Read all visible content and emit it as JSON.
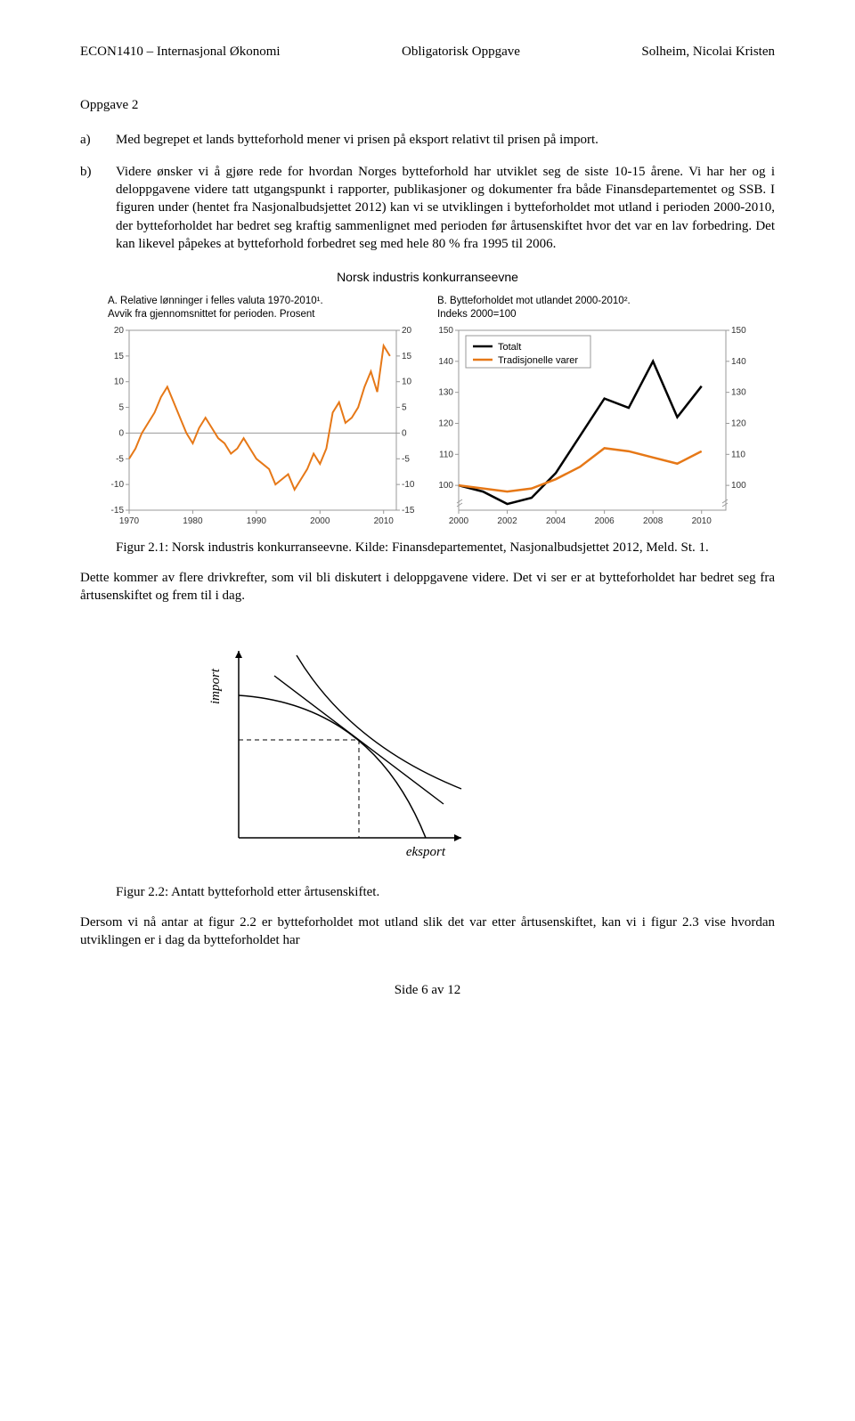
{
  "header": {
    "left": "ECON1410 – Internasjonal Økonomi",
    "center": "Obligatorisk Oppgave",
    "right": "Solheim, Nicolai Kristen"
  },
  "task_title": "Oppgave 2",
  "item_a": {
    "label": "a)",
    "text": "Med begrepet et lands bytteforhold mener vi prisen på eksport relativt til prisen på import."
  },
  "item_b": {
    "label": "b)",
    "text": "Videre ønsker vi å gjøre rede for hvordan Norges bytteforhold har utviklet seg de siste 10-15 årene. Vi har her og i deloppgavene videre tatt utgangspunkt i rapporter, publikasjoner og dokumenter fra både Finansdepartementet og SSB. I figuren under (hentet fra Nasjonalbudsjettet 2012) kan vi se utviklingen i bytteforholdet mot utland i perioden 2000-2010, der bytteforholdet har bedret seg kraftig sammenlignet med perioden før årtusenskiftet hvor det var en lav forbedring. Det kan likevel påpekes at bytteforhold forbedret seg med hele 80 % fra 1995 til 2006."
  },
  "charts": {
    "main_title": "Norsk industris konkurranseevne",
    "left": {
      "subtitle_a": "A.  Relative lønninger i felles valuta 1970-2010¹.",
      "subtitle_b": "Avvik fra gjennomsnittet for perioden. Prosent",
      "type": "line",
      "x_ticks": [
        1970,
        1980,
        1990,
        2000,
        2010
      ],
      "y_ticks": [
        -15,
        -10,
        -5,
        0,
        5,
        10,
        15,
        20
      ],
      "ylim": [
        -15,
        20
      ],
      "xlim": [
        1970,
        2012
      ],
      "series": {
        "color": "#e67817",
        "width": 2,
        "points": [
          [
            1970,
            -5
          ],
          [
            1971,
            -3
          ],
          [
            1972,
            0
          ],
          [
            1973,
            2
          ],
          [
            1974,
            4
          ],
          [
            1975,
            7
          ],
          [
            1976,
            9
          ],
          [
            1977,
            6
          ],
          [
            1978,
            3
          ],
          [
            1979,
            0
          ],
          [
            1980,
            -2
          ],
          [
            1981,
            1
          ],
          [
            1982,
            3
          ],
          [
            1983,
            1
          ],
          [
            1984,
            -1
          ],
          [
            1985,
            -2
          ],
          [
            1986,
            -4
          ],
          [
            1987,
            -3
          ],
          [
            1988,
            -1
          ],
          [
            1989,
            -3
          ],
          [
            1990,
            -5
          ],
          [
            1991,
            -6
          ],
          [
            1992,
            -7
          ],
          [
            1993,
            -10
          ],
          [
            1994,
            -9
          ],
          [
            1995,
            -8
          ],
          [
            1996,
            -11
          ],
          [
            1997,
            -9
          ],
          [
            1998,
            -7
          ],
          [
            1999,
            -4
          ],
          [
            2000,
            -6
          ],
          [
            2001,
            -3
          ],
          [
            2002,
            4
          ],
          [
            2003,
            6
          ],
          [
            2004,
            2
          ],
          [
            2005,
            3
          ],
          [
            2006,
            5
          ],
          [
            2007,
            9
          ],
          [
            2008,
            12
          ],
          [
            2009,
            8
          ],
          [
            2010,
            17
          ],
          [
            2011,
            15
          ]
        ]
      },
      "axis_color": "#999999",
      "tick_font": 10,
      "bg": "#ffffff"
    },
    "right": {
      "subtitle_a": "B.  Bytteforholdet mot utlandet 2000-2010².",
      "subtitle_b": "Indeks 2000=100",
      "type": "line",
      "x_ticks": [
        2000,
        2002,
        2004,
        2006,
        2008,
        2010
      ],
      "y_ticks": [
        100,
        110,
        120,
        130,
        140,
        150
      ],
      "ylim": [
        92,
        150
      ],
      "xlim": [
        2000,
        2011
      ],
      "legend": {
        "items": [
          {
            "label": "Totalt",
            "color": "#000000"
          },
          {
            "label": "Tradisjonelle varer",
            "color": "#e67817"
          }
        ],
        "box_color": "#999999"
      },
      "series_total": {
        "color": "#000000",
        "width": 2.5,
        "points": [
          [
            2000,
            100
          ],
          [
            2001,
            98
          ],
          [
            2002,
            94
          ],
          [
            2003,
            96
          ],
          [
            2004,
            104
          ],
          [
            2005,
            116
          ],
          [
            2006,
            128
          ],
          [
            2007,
            125
          ],
          [
            2008,
            140
          ],
          [
            2009,
            122
          ],
          [
            2010,
            132
          ]
        ]
      },
      "series_trad": {
        "color": "#e67817",
        "width": 2.5,
        "points": [
          [
            2000,
            100
          ],
          [
            2001,
            99
          ],
          [
            2002,
            98
          ],
          [
            2003,
            99
          ],
          [
            2004,
            102
          ],
          [
            2005,
            106
          ],
          [
            2006,
            112
          ],
          [
            2007,
            111
          ],
          [
            2008,
            109
          ],
          [
            2009,
            107
          ],
          [
            2010,
            111
          ]
        ]
      },
      "axis_color": "#999999",
      "tick_font": 10,
      "bg": "#ffffff"
    }
  },
  "caption_21": "Figur 2.1: Norsk industris konkurranseevne. Kilde: Finansdepartementet, Nasjonalbudsjettet 2012, Meld. St. 1.",
  "para_after_21": "Dette kommer av flere drivkrefter, som vil bli diskutert i deloppgavene videre. Det vi ser er at bytteforholdet har bedret seg fra årtusenskiftet og frem til i dag.",
  "econ_diagram": {
    "y_label": "import",
    "x_label": "eksport",
    "axis_color": "#000000",
    "curve_color": "#000000",
    "dash_color": "#000000"
  },
  "caption_22": "Figur 2.2: Antatt bytteforhold etter årtusenskiftet.",
  "para_after_22": "Dersom vi nå antar at figur 2.2 er bytteforholdet mot utland slik det var etter årtusenskiftet, kan vi i figur 2.3 vise hvordan utviklingen er i dag da bytteforholdet har",
  "footer": "Side 6 av 12"
}
